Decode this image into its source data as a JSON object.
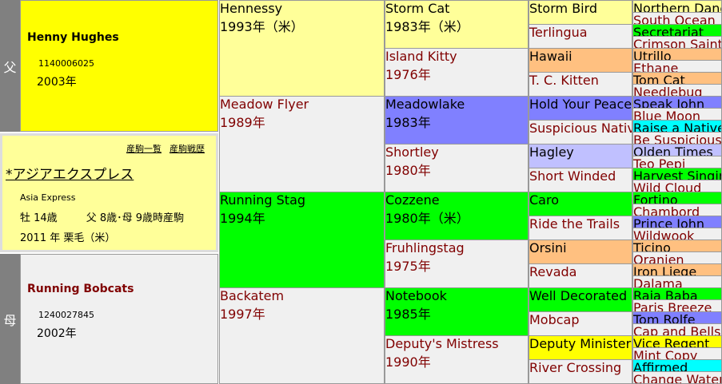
{
  "sire": {
    "label": "父",
    "name": "Henny Hughes",
    "reg": "1140006025",
    "year": "2003年",
    "color": "#ffff00"
  },
  "dam": {
    "label": "母",
    "name": "Running Bobcats",
    "reg": "1240027845",
    "year": "2002年",
    "color": "#f0f0f0"
  },
  "horse": {
    "links": [
      "産駒一覧",
      "産駒戦歴"
    ],
    "name": "*アジアエクスプレス",
    "name_en": "Asia Express",
    "sex_age": "牡 14歳",
    "parent_age": "父 8歳･母 9歳時産駒",
    "birth": "2011 年 栗毛（米）",
    "color": "#ffff99"
  },
  "gen2": [
    {
      "name": "Hennessy",
      "year": "1993年（米）",
      "color": "#ffff99"
    },
    {
      "name": "Meadow Flyer",
      "year": "1989年",
      "color": "#f0f0f0"
    },
    {
      "name": "Running Stag",
      "year": "1994年",
      "color": "#00ff00"
    },
    {
      "name": "Backatem",
      "year": "1997年",
      "color": "#f0f0f0"
    }
  ],
  "gen3": [
    {
      "name": "Storm Cat",
      "year": "1983年（米）",
      "color": "#ffff99"
    },
    {
      "name": "Island Kitty",
      "year": "1976年",
      "color": "#f0f0f0"
    },
    {
      "name": "Meadowlake",
      "year": "1983年",
      "color": "#8080ff"
    },
    {
      "name": "Shortley",
      "year": "1980年",
      "color": "#f0f0f0"
    },
    {
      "name": "Cozzene",
      "year": "1980年（米）",
      "color": "#00ff00"
    },
    {
      "name": "Fruhlingstag",
      "year": "1975年",
      "color": "#f0f0f0"
    },
    {
      "name": "Notebook",
      "year": "1985年",
      "color": "#00ff00"
    },
    {
      "name": "Deputy's Mistress",
      "year": "1990年",
      "color": "#f0f0f0"
    }
  ],
  "gen4": [
    {
      "name": "Storm Bird",
      "color": "#ffff99"
    },
    {
      "name": "Terlingua",
      "color": "#f0f0f0"
    },
    {
      "name": "Hawaii",
      "color": "#ffc080"
    },
    {
      "name": "T. C. Kitten",
      "color": "#f0f0f0"
    },
    {
      "name": "Hold Your Peace",
      "color": "#8080ff"
    },
    {
      "name": "Suspicious Native",
      "color": "#f0f0f0"
    },
    {
      "name": "Hagley",
      "color": "#c0c0ff"
    },
    {
      "name": "Short Winded",
      "color": "#f0f0f0"
    },
    {
      "name": "Caro",
      "color": "#00ff00"
    },
    {
      "name": "Ride the Trails",
      "color": "#f0f0f0"
    },
    {
      "name": "Orsini",
      "color": "#ffc080"
    },
    {
      "name": "Revada",
      "color": "#f0f0f0"
    },
    {
      "name": "Well Decorated",
      "color": "#00ff00"
    },
    {
      "name": "Mobcap",
      "color": "#f0f0f0"
    },
    {
      "name": "Deputy Minister",
      "color": "#ffff00"
    },
    {
      "name": "River Crossing",
      "color": "#f0f0f0"
    }
  ],
  "gen5": [
    {
      "name": "Northern Dancer",
      "color": "#ffff99"
    },
    {
      "name": "South Ocean",
      "color": "#f0f0f0"
    },
    {
      "name": "Secretariat",
      "color": "#00ff00"
    },
    {
      "name": "Crimson Saint",
      "color": "#f0f0f0"
    },
    {
      "name": "Utrillo",
      "color": "#ffc080"
    },
    {
      "name": "Ethane",
      "color": "#f0f0f0"
    },
    {
      "name": "Tom Cat",
      "color": "#ffc080"
    },
    {
      "name": "Needlebug",
      "color": "#f0f0f0"
    },
    {
      "name": "Speak John",
      "color": "#8080ff"
    },
    {
      "name": "Blue Moon",
      "color": "#f0f0f0"
    },
    {
      "name": "Raise a Native",
      "color": "#00ffff"
    },
    {
      "name": "Be Suspicious",
      "color": "#f0f0f0"
    },
    {
      "name": "Olden Times",
      "color": "#c0c0ff"
    },
    {
      "name": "Teo Pepi",
      "color": "#f0f0f0"
    },
    {
      "name": "Harvest Singing",
      "color": "#00ff00"
    },
    {
      "name": "Wild Cloud",
      "color": "#f0f0f0"
    },
    {
      "name": "Fortino",
      "color": "#00ff00"
    },
    {
      "name": "Chambord",
      "color": "#f0f0f0"
    },
    {
      "name": "Prince John",
      "color": "#8080ff"
    },
    {
      "name": "Wildwook",
      "color": "#f0f0f0"
    },
    {
      "name": "Ticino",
      "color": "#ffc080"
    },
    {
      "name": "Oranien",
      "color": "#f0f0f0"
    },
    {
      "name": "Iron Liege",
      "color": "#ffc080"
    },
    {
      "name": "Dalama",
      "color": "#f0f0f0"
    },
    {
      "name": "Raja Baba",
      "color": "#00ff00"
    },
    {
      "name": "Paris Breeze",
      "color": "#f0f0f0"
    },
    {
      "name": "Tom Rolfe",
      "color": "#8080ff"
    },
    {
      "name": "Cap and Bells",
      "color": "#f0f0f0"
    },
    {
      "name": "Vice Regent",
      "color": "#ffff00"
    },
    {
      "name": "Mint Copy",
      "color": "#f0f0f0"
    },
    {
      "name": "Affirmed",
      "color": "#00ffff"
    },
    {
      "name": "Change Water",
      "color": "#f0f0f0"
    }
  ]
}
